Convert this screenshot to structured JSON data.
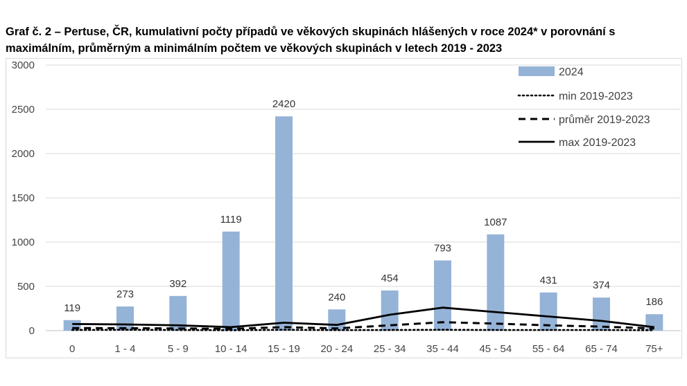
{
  "chart_data": {
    "type": "bar",
    "title": "Graf č. 2 – Pertuse, ČR, kumulativní počty případů ve věkových skupinách hlášených v roce 2024* v porovnání s maximálním, průměrným a minimálním počtem ve věkových skupinách v  letech 2019 - 2023",
    "categories": [
      "0",
      "1 - 4",
      "5 - 9",
      "10 - 14",
      "15 - 19",
      "20 - 24",
      "25 - 34",
      "35 - 44",
      "45 - 54",
      "55 - 64",
      "65 - 74",
      "75+"
    ],
    "ylim": [
      0,
      3000
    ],
    "yticks": [
      "0",
      "500",
      "1000",
      "1500",
      "2000",
      "2500",
      "3000"
    ],
    "grid": true,
    "legend_position": "top-right",
    "series": [
      {
        "name": "2024",
        "kind": "bar",
        "color": "#95b3d7",
        "values": [
          119,
          273,
          392,
          1119,
          2420,
          240,
          454,
          793,
          1087,
          431,
          374,
          186
        ],
        "labels": [
          "119",
          "273",
          "392",
          "1119",
          "2420",
          "240",
          "454",
          "793",
          "1087",
          "431",
          "374",
          "186"
        ]
      },
      {
        "name": "min 2019-2023",
        "kind": "line",
        "style": "dotted",
        "color": "#000000",
        "values": [
          8,
          10,
          8,
          5,
          10,
          6,
          8,
          10,
          8,
          8,
          8,
          5
        ]
      },
      {
        "name": "průměr 2019-2023",
        "kind": "line",
        "style": "dashed",
        "color": "#000000",
        "values": [
          30,
          28,
          25,
          20,
          40,
          25,
          60,
          95,
          80,
          60,
          45,
          25
        ]
      },
      {
        "name": "max 2019-2023",
        "kind": "line",
        "style": "solid",
        "color": "#000000",
        "values": [
          75,
          70,
          60,
          40,
          90,
          65,
          180,
          260,
          210,
          160,
          110,
          40
        ]
      }
    ]
  }
}
